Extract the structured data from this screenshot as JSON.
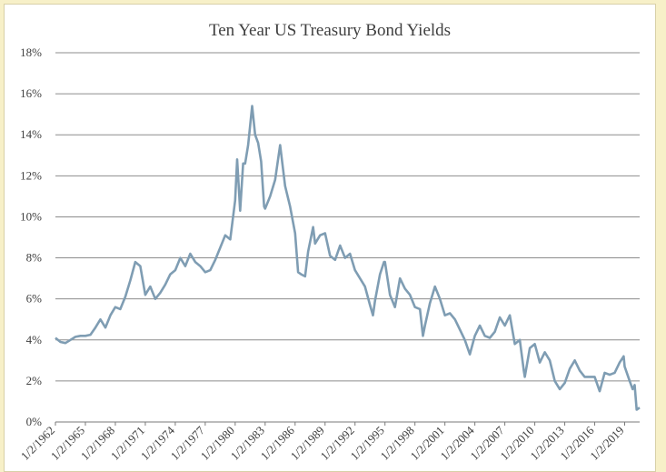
{
  "chart_data": {
    "type": "line",
    "title": "Ten Year US Treasury Bond Yields",
    "xlabel": "",
    "ylabel": "",
    "ylim": [
      0,
      18
    ],
    "xlim": [
      "1/2/1962",
      "4/2020"
    ],
    "y_ticks": [
      "0%",
      "2%",
      "4%",
      "6%",
      "8%",
      "10%",
      "12%",
      "14%",
      "16%",
      "18%"
    ],
    "x_ticks": [
      "1/2/1962",
      "1/2/1965",
      "1/2/1968",
      "1/2/1971",
      "1/2/1974",
      "1/2/1977",
      "1/2/1980",
      "1/2/1983",
      "1/2/1986",
      "1/2/1989",
      "1/2/1992",
      "1/2/1995",
      "1/2/1998",
      "1/2/2001",
      "1/2/2004",
      "1/2/2007",
      "1/2/2010",
      "1/2/2013",
      "1/2/2016",
      "1/2/2019"
    ],
    "grid": true,
    "line_color": "#7f9db3",
    "series": [
      {
        "x": [
          1962.0,
          1962.5,
          1963.0,
          1963.5,
          1964.0,
          1964.5,
          1965.0,
          1965.5,
          1966.0,
          1966.5,
          1967.0,
          1967.5,
          1968.0,
          1968.5,
          1969.0,
          1969.5,
          1970.0,
          1970.5,
          1971.0,
          1971.5,
          1972.0,
          1972.5,
          1973.0,
          1973.5,
          1974.0,
          1974.5,
          1975.0,
          1975.5,
          1976.0,
          1976.5,
          1977.0,
          1977.5,
          1978.0,
          1978.5,
          1979.0,
          1979.5,
          1980.0,
          1980.2,
          1980.5,
          1980.8,
          1981.0,
          1981.3,
          1981.7,
          1982.0,
          1982.3,
          1982.6,
          1982.9,
          1983.0,
          1983.5,
          1984.0,
          1984.5,
          1985.0,
          1985.5,
          1986.0,
          1986.3,
          1986.6,
          1987.0,
          1987.3,
          1987.8,
          1988.0,
          1988.5,
          1989.0,
          1989.5,
          1990.0,
          1990.5,
          1991.0,
          1991.5,
          1992.0,
          1992.5,
          1993.0,
          1993.5,
          1993.8,
          1994.0,
          1994.5,
          1994.9,
          1995.0,
          1995.5,
          1996.0,
          1996.5,
          1997.0,
          1997.5,
          1998.0,
          1998.5,
          1998.8,
          1999.0,
          1999.5,
          2000.0,
          2000.5,
          2001.0,
          2001.5,
          2002.0,
          2002.5,
          2003.0,
          2003.5,
          2004.0,
          2004.5,
          2005.0,
          2005.5,
          2006.0,
          2006.5,
          2007.0,
          2007.5,
          2008.0,
          2008.5,
          2008.9,
          2009.0,
          2009.5,
          2010.0,
          2010.5,
          2011.0,
          2011.5,
          2012.0,
          2012.5,
          2013.0,
          2013.5,
          2014.0,
          2014.5,
          2015.0,
          2015.5,
          2016.0,
          2016.5,
          2017.0,
          2017.5,
          2018.0,
          2018.5,
          2018.9,
          2019.0,
          2019.5,
          2019.8,
          2020.0,
          2020.2,
          2020.5
        ],
        "y": [
          4.1,
          3.9,
          3.85,
          4.0,
          4.15,
          4.2,
          4.2,
          4.25,
          4.6,
          5.0,
          4.6,
          5.2,
          5.6,
          5.5,
          6.1,
          6.9,
          7.8,
          7.6,
          6.2,
          6.6,
          6.0,
          6.3,
          6.7,
          7.2,
          7.4,
          8.0,
          7.6,
          8.2,
          7.8,
          7.6,
          7.3,
          7.4,
          7.9,
          8.5,
          9.1,
          8.9,
          10.8,
          12.8,
          10.3,
          12.6,
          12.6,
          13.5,
          15.4,
          14.0,
          13.6,
          12.7,
          10.5,
          10.4,
          11.0,
          11.8,
          13.5,
          11.5,
          10.5,
          9.2,
          7.3,
          7.2,
          7.1,
          8.3,
          9.5,
          8.7,
          9.1,
          9.2,
          8.1,
          7.9,
          8.6,
          8.0,
          8.2,
          7.4,
          7.0,
          6.6,
          5.7,
          5.2,
          5.9,
          7.2,
          7.8,
          7.8,
          6.2,
          5.6,
          7.0,
          6.5,
          6.2,
          5.6,
          5.5,
          4.2,
          4.7,
          5.8,
          6.6,
          6.0,
          5.2,
          5.3,
          5.0,
          4.5,
          4.0,
          3.3,
          4.2,
          4.7,
          4.2,
          4.1,
          4.4,
          5.1,
          4.7,
          5.2,
          3.8,
          4.0,
          2.5,
          2.2,
          3.6,
          3.8,
          2.9,
          3.4,
          3.0,
          2.0,
          1.6,
          1.9,
          2.6,
          3.0,
          2.5,
          2.2,
          2.2,
          2.2,
          1.5,
          2.4,
          2.3,
          2.4,
          2.9,
          3.2,
          2.7,
          2.0,
          1.6,
          1.8,
          0.6,
          0.7
        ]
      }
    ]
  }
}
